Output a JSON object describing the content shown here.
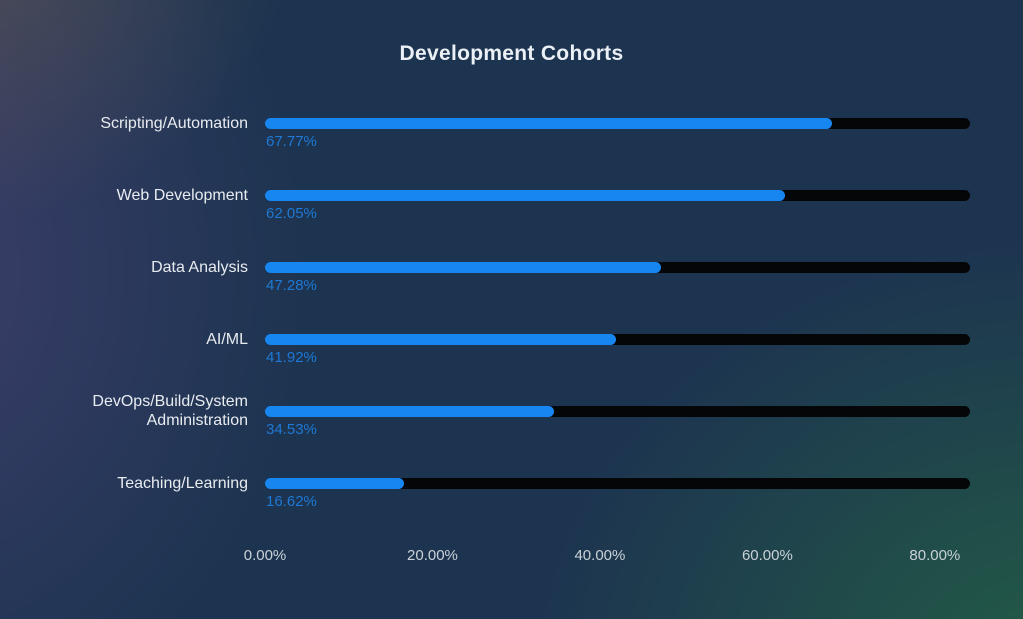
{
  "title": "Development Cohorts",
  "colors": {
    "bar_fill": "#1886f1",
    "bar_track": "#040608",
    "value_text": "#1f78d4",
    "category_text": "#e8ecf0",
    "axis_text": "#c9d2d7",
    "title_text": "#eaf0f5",
    "background_center": "#1d3450",
    "background_topleft": "#403a43",
    "background_left": "#383150",
    "background_bottomright": "#1f4739"
  },
  "chart_data": {
    "type": "bar",
    "orientation": "horizontal",
    "title": "Development Cohorts",
    "categories": [
      "Scripting/Automation",
      "Web Development",
      "Data Analysis",
      "AI/ML",
      "DevOps/Build/System Administration",
      "Teaching/Learning"
    ],
    "values": [
      67.77,
      62.05,
      47.28,
      41.92,
      34.53,
      16.62
    ],
    "value_labels": [
      "67.77%",
      "62.05%",
      "47.28%",
      "41.92%",
      "34.53%",
      "16.62%"
    ],
    "xlabel": "",
    "ylabel": "",
    "x_ticks": [
      "0.00%",
      "20.00%",
      "40.00%",
      "60.00%",
      "80.00%"
    ],
    "x_tick_values": [
      0,
      20,
      40,
      60,
      80
    ],
    "xlim": [
      0,
      84.2
    ],
    "grid": false,
    "legend": false
  }
}
